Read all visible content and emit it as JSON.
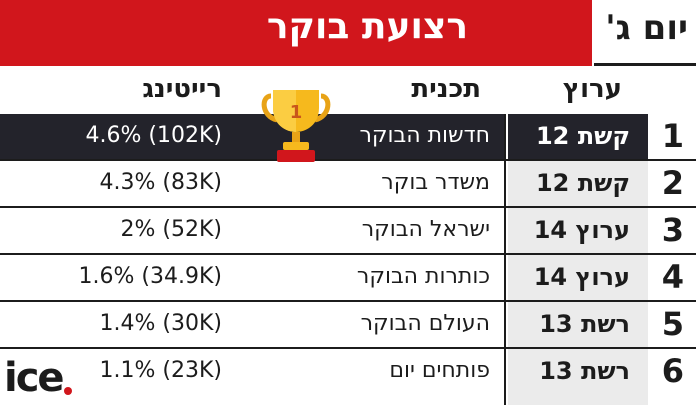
{
  "header": {
    "title": "רצועת בוקר",
    "day": "יום ג'"
  },
  "columns": {
    "channel": "ערוץ",
    "program": "תכנית",
    "rating": "רייטינג"
  },
  "rows": [
    {
      "rank": "1",
      "channel": "קשת 12",
      "program": "חדשות הבוקר",
      "rating": "(102K) 4.6%"
    },
    {
      "rank": "2",
      "channel": "קשת 12",
      "program": "משדר בוקר",
      "rating": "(83K) 4.3%"
    },
    {
      "rank": "3",
      "channel": "ערוץ 14",
      "program": "ישראל הבוקר",
      "rating": "(52K) 2%"
    },
    {
      "rank": "4",
      "channel": "ערוץ 14",
      "program": "כותרות הבוקר",
      "rating": "(34.9K) 1.6%"
    },
    {
      "rank": "5",
      "channel": "רשת 13",
      "program": "העולם הבוקר",
      "rating": "(30K) 1.4%"
    },
    {
      "rank": "6",
      "channel": "רשת 13",
      "program": "פותחים יום",
      "rating": "(23K) 1.1%"
    }
  ],
  "trophy": {
    "icon": "trophy-icon",
    "number": "1"
  },
  "logo": {
    "text": "ice",
    "accent_color": "#d1161c"
  },
  "colors": {
    "brand_red": "#d1161c",
    "highlight_dark": "#23232b",
    "channel_bg": "#ebebeb"
  }
}
